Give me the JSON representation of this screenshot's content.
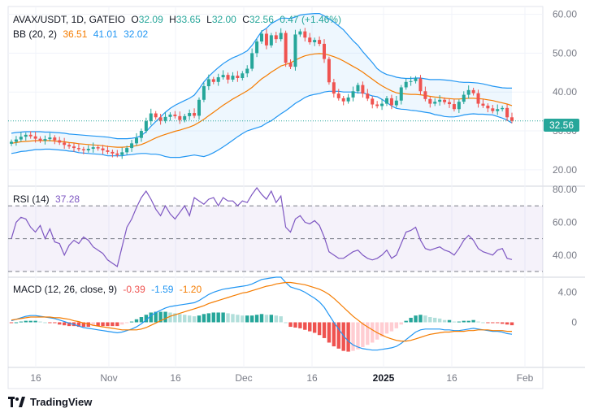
{
  "header": {
    "symbol": "AVAX/USDT, 1D, GATEIO",
    "open_label": "O",
    "open": "32.09",
    "high_label": "H",
    "high": "33.65",
    "low_label": "L",
    "low": "32.00",
    "close_label": "C",
    "close": "32.56",
    "change": "0.47 (+1.46%)"
  },
  "bb_legend": {
    "label": "BB (20, 2)",
    "basis": "36.51",
    "upper": "41.01",
    "lower": "32.02"
  },
  "rsi_legend": {
    "label": "RSI (14)",
    "value": "37.28"
  },
  "macd_legend": {
    "label": "MACD (12, 26, close, 9)",
    "hist": "-0.39",
    "macd": "-1.59",
    "signal": "-1.20"
  },
  "price_badge": "32.56",
  "brand": {
    "name": "TradingView",
    "logo": "tradingview-logo"
  },
  "colors": {
    "up": "#26a69a",
    "down": "#ef5350",
    "bb_basis": "#f57c00",
    "bb_band": "#2196f3",
    "rsi_line": "#7e57c2",
    "macd_line": "#2196f3",
    "signal_line": "#f57c00",
    "hist_up_strong": "#26a69a",
    "hist_up_weak": "#b2dfdb",
    "hist_down_strong": "#ef5350",
    "hist_down_weak": "#ffcdd2"
  },
  "chart_data": [
    {
      "type": "candlestick",
      "title": "AVAX/USDT, 1D, GATEIO",
      "x_ticks": [
        "16",
        "Nov",
        "16",
        "Dec",
        "16",
        "2025",
        "16",
        "Feb"
      ],
      "y_ticks": [
        "60.00",
        "50.00",
        "40.00",
        "30.00",
        "20.00"
      ],
      "ylim": [
        16,
        62
      ],
      "closes": [
        27.2,
        27.8,
        28.5,
        29.0,
        28.6,
        28.0,
        27.5,
        27.9,
        28.3,
        27.6,
        27.0,
        26.4,
        26.0,
        25.6,
        25.3,
        25.0,
        25.4,
        25.8,
        25.5,
        25.0,
        24.6,
        24.2,
        23.8,
        24.5,
        25.6,
        26.8,
        28.2,
        30.0,
        32.5,
        34.5,
        33.5,
        32.6,
        33.6,
        34.2,
        33.8,
        32.8,
        33.8,
        34.6,
        33.9,
        38.0,
        41.5,
        43.3,
        42.6,
        43.8,
        44.4,
        43.2,
        44.2,
        43.6,
        44.8,
        46.0,
        50.0,
        53.0,
        55.0,
        52.0,
        54.6,
        53.6,
        55.2,
        47.5,
        46.5,
        54.8,
        55.6,
        54.0,
        52.8,
        53.4,
        52.4,
        48.5,
        42.5,
        39.6,
        38.4,
        37.6,
        38.6,
        40.2,
        41.8,
        39.6,
        38.3,
        36.8,
        36.4,
        37.0,
        38.4,
        36.6,
        37.8,
        41.2,
        42.6,
        42.8,
        43.5,
        40.2,
        38.2,
        37.0,
        37.5,
        38.0,
        37.4,
        36.9,
        35.6,
        37.5,
        39.3,
        40.5,
        39.7,
        37.0,
        36.5,
        35.8,
        35.1,
        35.6,
        35.9,
        33.5,
        32.56
      ],
      "upper_band": [
        29.4,
        29.6,
        29.7,
        29.8,
        29.8,
        29.8,
        29.8,
        29.7,
        29.7,
        29.6,
        29.5,
        29.4,
        29.2,
        29.1,
        29.0,
        28.9,
        28.8,
        28.7,
        28.6,
        28.5,
        28.4,
        28.2,
        28.0,
        28.0,
        28.0,
        28.1,
        28.3,
        28.8,
        29.8,
        31.2,
        32.4,
        33.6,
        34.8,
        35.8,
        36.6,
        37.2,
        37.8,
        38.4,
        39.2,
        40.8,
        42.6,
        44.0,
        45.2,
        46.3,
        47.3,
        48.1,
        48.8,
        49.3,
        49.9,
        50.6,
        52.0,
        53.8,
        55.6,
        56.4,
        57.6,
        58.3,
        59.0,
        59.0,
        58.9,
        59.3,
        59.8,
        60.0,
        60.1,
        60.2,
        60.2,
        59.6,
        58.8,
        58.0,
        57.0,
        56.0,
        54.6,
        53.2,
        52.0,
        50.4,
        49.0,
        47.6,
        46.0,
        45.1,
        44.5,
        44.2,
        43.8,
        43.6,
        43.5,
        43.5,
        43.6,
        43.6,
        43.4,
        43.2,
        43.2,
        43.2,
        43.1,
        43.0,
        42.8,
        42.6,
        42.5,
        42.5,
        42.4,
        42.3,
        42.1,
        41.8,
        41.5,
        41.3,
        41.1,
        41.0,
        41.01
      ],
      "basis": [
        26.8,
        27.0,
        27.2,
        27.3,
        27.4,
        27.5,
        27.5,
        27.5,
        27.5,
        27.4,
        27.3,
        27.2,
        27.0,
        26.9,
        26.7,
        26.6,
        26.5,
        26.4,
        26.3,
        26.2,
        26.0,
        25.9,
        25.8,
        25.8,
        25.9,
        26.0,
        26.2,
        26.5,
        27.0,
        27.6,
        28.2,
        28.7,
        29.1,
        29.5,
        29.9,
        30.2,
        30.6,
        31.0,
        31.5,
        32.2,
        33.0,
        33.9,
        34.8,
        35.7,
        36.6,
        37.4,
        38.2,
        38.9,
        39.6,
        40.3,
        41.2,
        42.3,
        43.4,
        44.2,
        45.1,
        45.9,
        46.7,
        47.1,
        47.5,
        48.2,
        48.8,
        49.3,
        49.6,
        49.8,
        49.9,
        49.8,
        49.5,
        49.1,
        48.6,
        48.0,
        47.3,
        46.6,
        45.9,
        45.1,
        44.2,
        43.3,
        42.4,
        41.6,
        40.9,
        40.3,
        39.8,
        39.6,
        39.5,
        39.4,
        39.4,
        39.3,
        39.1,
        38.9,
        38.7,
        38.6,
        38.4,
        38.3,
        38.2,
        38.2,
        38.3,
        38.4,
        38.4,
        38.3,
        38.2,
        38.0,
        37.8,
        37.5,
        37.2,
        36.9,
        36.51
      ],
      "lower_band": [
        24.2,
        24.4,
        24.7,
        24.8,
        25.0,
        25.2,
        25.2,
        25.3,
        25.3,
        25.2,
        25.1,
        25.0,
        24.8,
        24.7,
        24.4,
        24.3,
        24.2,
        24.1,
        24.0,
        23.9,
        23.6,
        23.6,
        23.6,
        23.6,
        23.8,
        23.9,
        24.1,
        24.2,
        24.2,
        24.0,
        24.0,
        23.8,
        23.4,
        23.2,
        23.2,
        23.2,
        23.4,
        23.6,
        23.8,
        23.6,
        23.4,
        23.8,
        24.4,
        25.1,
        25.9,
        26.7,
        27.6,
        28.5,
        29.3,
        30.0,
        30.4,
        30.8,
        31.2,
        32.0,
        32.6,
        33.5,
        34.4,
        35.2,
        36.1,
        37.1,
        37.8,
        38.6,
        39.1,
        39.4,
        39.6,
        40.0,
        40.2,
        40.2,
        40.2,
        40.0,
        40.0,
        40.0,
        39.8,
        39.8,
        39.4,
        39.0,
        38.8,
        38.1,
        37.3,
        36.4,
        35.8,
        35.6,
        35.5,
        35.3,
        35.2,
        35.0,
        34.8,
        34.6,
        34.2,
        34.0,
        33.7,
        33.6,
        33.6,
        33.8,
        34.1,
        34.3,
        34.4,
        34.3,
        34.3,
        34.2,
        34.1,
        33.7,
        33.3,
        32.8,
        32.02
      ]
    },
    {
      "type": "line",
      "title": "RSI (14)",
      "y_ticks": [
        "80.00",
        "60.00",
        "40.00"
      ],
      "ylim": [
        27,
        82
      ],
      "bands": [
        30,
        50,
        70
      ],
      "values": [
        50,
        60,
        63,
        62,
        57,
        54,
        58,
        50,
        56,
        48,
        47,
        40,
        46,
        49,
        47,
        51,
        49,
        45,
        43,
        41,
        37,
        35,
        33,
        45,
        57,
        62,
        69,
        75,
        79,
        74,
        68,
        64,
        70,
        65,
        62,
        66,
        70,
        64,
        75,
        73,
        71,
        74,
        75,
        70,
        75,
        73,
        73,
        70,
        73,
        72,
        77,
        81,
        77,
        74,
        79,
        72,
        76,
        57,
        54,
        62,
        64,
        60,
        59,
        61,
        58,
        51,
        42,
        40,
        38,
        38,
        40,
        42,
        43,
        40,
        38,
        37,
        38,
        40,
        43,
        38,
        40,
        47,
        54,
        55,
        57,
        49,
        44,
        43,
        44,
        45,
        43,
        42,
        40,
        44,
        49,
        52,
        49,
        44,
        42,
        41,
        40,
        43,
        44,
        38,
        37.28
      ]
    },
    {
      "type": "line",
      "title": "MACD (12, 26, close, 9)",
      "y_ticks": [
        "4.00",
        "0"
      ],
      "ylim": [
        -6,
        6
      ],
      "macd": [
        0.2,
        0.4,
        0.6,
        0.8,
        0.9,
        0.9,
        0.8,
        0.7,
        0.6,
        0.5,
        0.3,
        0.1,
        -0.1,
        -0.3,
        -0.5,
        -0.7,
        -0.8,
        -0.9,
        -1.0,
        -1.1,
        -1.2,
        -1.3,
        -1.4,
        -1.3,
        -1.1,
        -0.9,
        -0.6,
        -0.2,
        0.3,
        0.9,
        1.3,
        1.6,
        1.9,
        2.1,
        2.2,
        2.3,
        2.4,
        2.5,
        2.6,
        2.9,
        3.3,
        3.7,
        4.0,
        4.2,
        4.4,
        4.5,
        4.6,
        4.7,
        4.8,
        4.9,
        5.1,
        5.4,
        5.7,
        5.8,
        5.9,
        6.0,
        6.0,
        5.3,
        4.7,
        4.5,
        4.3,
        4.0,
        3.6,
        3.2,
        2.7,
        2.0,
        1.0,
        0.0,
        -0.9,
        -1.8,
        -2.5,
        -3.0,
        -3.3,
        -3.5,
        -3.6,
        -3.7,
        -3.7,
        -3.6,
        -3.5,
        -3.4,
        -3.2,
        -2.8,
        -2.3,
        -1.8,
        -1.3,
        -1.0,
        -0.9,
        -0.9,
        -0.9,
        -0.9,
        -1.0,
        -1.0,
        -1.1,
        -1.1,
        -1.0,
        -0.9,
        -0.8,
        -0.9,
        -1.0,
        -1.1,
        -1.2,
        -1.2,
        -1.3,
        -1.5,
        -1.59
      ],
      "signal": [
        0.3,
        0.4,
        0.5,
        0.6,
        0.7,
        0.7,
        0.7,
        0.7,
        0.7,
        0.6,
        0.6,
        0.5,
        0.4,
        0.2,
        0.1,
        -0.1,
        -0.2,
        -0.4,
        -0.5,
        -0.6,
        -0.7,
        -0.8,
        -0.9,
        -1.0,
        -1.0,
        -1.0,
        -1.0,
        -0.9,
        -0.7,
        -0.4,
        -0.1,
        0.2,
        0.5,
        0.8,
        1.0,
        1.2,
        1.4,
        1.6,
        1.8,
        2.0,
        2.2,
        2.5,
        2.7,
        2.9,
        3.1,
        3.3,
        3.5,
        3.7,
        3.9,
        4.0,
        4.2,
        4.4,
        4.6,
        4.8,
        4.9,
        5.1,
        5.2,
        5.3,
        5.3,
        5.2,
        5.1,
        5.0,
        4.8,
        4.6,
        4.4,
        4.1,
        3.7,
        3.2,
        2.6,
        2.0,
        1.4,
        0.8,
        0.3,
        -0.2,
        -0.6,
        -1.0,
        -1.4,
        -1.7,
        -2.0,
        -2.2,
        -2.4,
        -2.5,
        -2.5,
        -2.4,
        -2.2,
        -2.0,
        -1.8,
        -1.6,
        -1.5,
        -1.4,
        -1.3,
        -1.3,
        -1.2,
        -1.2,
        -1.2,
        -1.1,
        -1.1,
        -1.0,
        -1.0,
        -1.0,
        -1.1,
        -1.1,
        -1.1,
        -1.2,
        -1.2
      ],
      "histogram": [
        -0.1,
        0.0,
        0.1,
        0.2,
        0.2,
        0.2,
        0.1,
        0.0,
        -0.1,
        -0.1,
        -0.3,
        -0.4,
        -0.5,
        -0.5,
        -0.6,
        -0.6,
        -0.6,
        -0.5,
        -0.5,
        -0.5,
        -0.5,
        -0.5,
        -0.5,
        -0.3,
        -0.1,
        0.1,
        0.4,
        0.7,
        1.0,
        1.3,
        1.4,
        1.4,
        1.4,
        1.3,
        1.2,
        1.1,
        1.0,
        0.9,
        0.8,
        0.9,
        1.1,
        1.2,
        1.3,
        1.3,
        1.3,
        1.2,
        1.1,
        1.0,
        0.9,
        0.9,
        0.9,
        1.0,
        1.1,
        1.0,
        1.0,
        0.9,
        0.8,
        0.0,
        -0.6,
        -0.7,
        -0.8,
        -1.0,
        -1.2,
        -1.4,
        -1.7,
        -2.1,
        -2.7,
        -3.2,
        -3.5,
        -3.8,
        -3.9,
        -3.8,
        -3.6,
        -3.3,
        -3.0,
        -2.7,
        -2.3,
        -1.9,
        -1.5,
        -1.2,
        -0.8,
        -0.3,
        0.2,
        0.6,
        0.9,
        1.0,
        0.9,
        0.7,
        0.6,
        0.5,
        0.3,
        0.3,
        0.1,
        0.1,
        0.2,
        0.2,
        0.3,
        0.1,
        0.0,
        -0.1,
        -0.1,
        -0.1,
        -0.2,
        -0.3,
        -0.39
      ]
    }
  ]
}
